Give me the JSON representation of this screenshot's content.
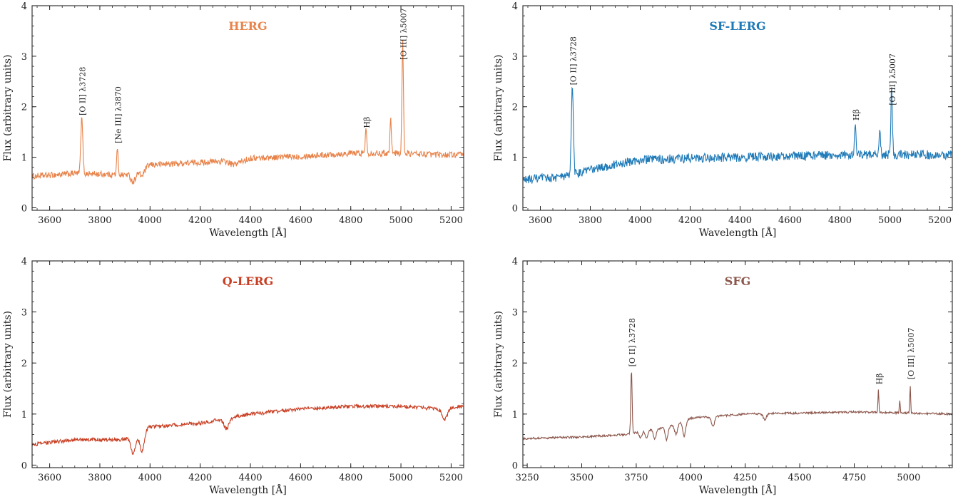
{
  "chart_data": [
    {
      "type": "line",
      "title": "HERG",
      "title_color": "#e8834a",
      "line_color": "#e8834a",
      "xlabel": "Wavelength [Å]",
      "ylabel": "Flux (arbitrary units)",
      "xlim": [
        3530,
        5250
      ],
      "ylim": [
        -0.05,
        4.0
      ],
      "xticks": [
        3600,
        3800,
        4000,
        4200,
        4400,
        4600,
        4800,
        5000,
        5200
      ],
      "yticks": [
        0,
        1,
        2,
        3,
        4
      ],
      "continuum": [
        [
          3530,
          0.62
        ],
        [
          3700,
          0.68
        ],
        [
          3900,
          0.65
        ],
        [
          4000,
          0.85
        ],
        [
          4200,
          0.9
        ],
        [
          4300,
          0.92
        ],
        [
          4330,
          0.85
        ],
        [
          4400,
          0.98
        ],
        [
          4600,
          1.02
        ],
        [
          4800,
          1.08
        ],
        [
          5000,
          1.08
        ],
        [
          5150,
          1.05
        ],
        [
          5250,
          1.05
        ]
      ],
      "noise": 0.06,
      "absorptions": [
        [
          3933,
          0.2,
          10
        ],
        [
          3968,
          0.15,
          10
        ]
      ],
      "emissions": [
        [
          3728,
          1.1,
          4
        ],
        [
          3870,
          0.5,
          3
        ],
        [
          4861,
          0.5,
          3
        ],
        [
          4959,
          0.7,
          3
        ],
        [
          5007,
          2.2,
          3
        ]
      ],
      "annotations": [
        {
          "text": "[O II] λ3728",
          "x": 3728,
          "y": 1.8
        },
        {
          "text": "[Ne III] λ3870",
          "x": 3870,
          "y": 1.25
        },
        {
          "text": "Hβ",
          "x": 4861,
          "y": 1.55
        },
        {
          "text": "[O III] λ5007",
          "x": 5007,
          "y": 2.9
        }
      ]
    },
    {
      "type": "line",
      "title": "SF-LERG",
      "title_color": "#1f7ab8",
      "line_color": "#1f7ab8",
      "xlabel": "Wavelength [Å]",
      "ylabel": "Flux (arbitrary units)",
      "xlim": [
        3530,
        5250
      ],
      "ylim": [
        -0.05,
        4.0
      ],
      "xticks": [
        3600,
        3800,
        4000,
        4200,
        4400,
        4600,
        4800,
        5000,
        5200
      ],
      "yticks": [
        0,
        1,
        2,
        3,
        4
      ],
      "continuum": [
        [
          3530,
          0.55
        ],
        [
          3700,
          0.62
        ],
        [
          3800,
          0.75
        ],
        [
          3900,
          0.85
        ],
        [
          4000,
          0.95
        ],
        [
          4200,
          0.98
        ],
        [
          4400,
          1.0
        ],
        [
          4600,
          1.02
        ],
        [
          4800,
          1.05
        ],
        [
          5000,
          1.05
        ],
        [
          5250,
          1.05
        ]
      ],
      "noise": 0.09,
      "absorptions": [],
      "emissions": [
        [
          3728,
          1.75,
          4
        ],
        [
          4861,
          0.65,
          3
        ],
        [
          4959,
          0.5,
          3
        ],
        [
          5007,
          1.35,
          3
        ]
      ],
      "annotations": [
        {
          "text": "[O II] λ3728",
          "x": 3728,
          "y": 2.4
        },
        {
          "text": "Hβ",
          "x": 4861,
          "y": 1.7
        },
        {
          "text": "[O III] λ5007",
          "x": 5007,
          "y": 2.0
        }
      ]
    },
    {
      "type": "line",
      "title": "Q-LERG",
      "title_color": "#c83e22",
      "line_color": "#c83e22",
      "xlabel": "Wavelength [Å]",
      "ylabel": "Flux (arbitrary units)",
      "xlim": [
        3530,
        5250
      ],
      "ylim": [
        -0.05,
        4.0
      ],
      "xticks": [
        3600,
        3800,
        4000,
        4200,
        4400,
        4600,
        4800,
        5000,
        5200
      ],
      "yticks": [
        0,
        1,
        2,
        3,
        4
      ],
      "continuum": [
        [
          3530,
          0.4
        ],
        [
          3700,
          0.5
        ],
        [
          3900,
          0.5
        ],
        [
          4000,
          0.75
        ],
        [
          4200,
          0.82
        ],
        [
          4400,
          1.0
        ],
        [
          4600,
          1.1
        ],
        [
          4800,
          1.15
        ],
        [
          5000,
          1.15
        ],
        [
          5150,
          1.1
        ],
        [
          5250,
          1.15
        ]
      ],
      "noise": 0.035,
      "absorptions": [
        [
          3933,
          0.35,
          9
        ],
        [
          3968,
          0.4,
          9
        ],
        [
          4305,
          0.2,
          10
        ],
        [
          5175,
          0.22,
          10
        ]
      ],
      "emissions": [],
      "annotations": []
    },
    {
      "type": "line",
      "title": "SFG",
      "title_color": "#8c564b",
      "line_color": "#8c564b",
      "xlabel": "Wavelength [Å]",
      "ylabel": "Flux (arbitrary units)",
      "xlim": [
        3230,
        5200
      ],
      "ylim": [
        -0.05,
        4.0
      ],
      "xticks": [
        3250,
        3500,
        3750,
        4000,
        4250,
        4500,
        4750,
        5000
      ],
      "yticks": [
        0,
        1,
        2,
        3,
        4
      ],
      "continuum": [
        [
          3230,
          0.52
        ],
        [
          3500,
          0.55
        ],
        [
          3700,
          0.6
        ],
        [
          3900,
          0.75
        ],
        [
          4000,
          0.92
        ],
        [
          4250,
          1.0
        ],
        [
          4500,
          1.02
        ],
        [
          4750,
          1.04
        ],
        [
          5000,
          1.02
        ],
        [
          5200,
          1.0
        ]
      ],
      "noise": 0.02,
      "absorptions": [
        [
          3770,
          0.12,
          6
        ],
        [
          3798,
          0.15,
          6
        ],
        [
          3835,
          0.2,
          6
        ],
        [
          3889,
          0.25,
          6
        ],
        [
          3933,
          0.2,
          7
        ],
        [
          3970,
          0.3,
          7
        ],
        [
          4102,
          0.2,
          7
        ],
        [
          4340,
          0.12,
          7
        ]
      ],
      "emissions": [
        [
          3728,
          1.25,
          3
        ],
        [
          4861,
          0.45,
          2
        ],
        [
          4959,
          0.25,
          2
        ],
        [
          5007,
          0.55,
          2
        ]
      ],
      "annotations": [
        {
          "text": "[O II] λ3728",
          "x": 3728,
          "y": 1.9
        },
        {
          "text": "Hβ",
          "x": 4861,
          "y": 1.55
        },
        {
          "text": "[O III] λ5007",
          "x": 5007,
          "y": 1.65
        }
      ]
    }
  ]
}
